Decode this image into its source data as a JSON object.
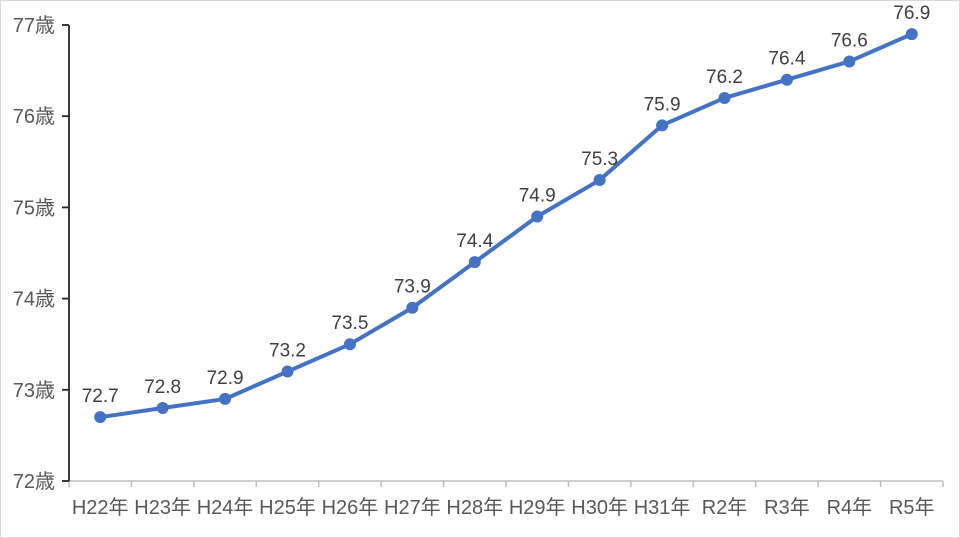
{
  "chart_data": {
    "type": "line",
    "title": "",
    "xlabel": "",
    "ylabel": "",
    "categories": [
      "H22年",
      "H23年",
      "H24年",
      "H25年",
      "H26年",
      "H27年",
      "H28年",
      "H29年",
      "H30年",
      "H31年",
      "R2年",
      "R3年",
      "R4年",
      "R5年"
    ],
    "values": [
      72.7,
      72.8,
      72.9,
      73.2,
      73.5,
      73.9,
      74.4,
      74.9,
      75.3,
      75.9,
      76.2,
      76.4,
      76.6,
      76.9
    ],
    "data_labels": [
      "72.7",
      "72.8",
      "72.9",
      "73.2",
      "73.5",
      "73.9",
      "74.4",
      "74.9",
      "75.3",
      "75.9",
      "76.2",
      "76.4",
      "76.6",
      "76.9"
    ],
    "y_tick_labels": [
      "72歳",
      "73歳",
      "74歳",
      "75歳",
      "76歳",
      "77歳"
    ],
    "y_tick_values": [
      72,
      73,
      74,
      75,
      76,
      77
    ],
    "ylim": [
      72,
      77
    ],
    "unit_suffix": "歳",
    "grid": false,
    "legend": false,
    "marker": "circle",
    "colors": {
      "line": "#4472C4",
      "marker": "#4472C4",
      "data_label": "#404040",
      "axis_text": "#595959",
      "y_axis": "#262626",
      "x_axis": "#BFBFBF",
      "frame_border": "#D9D9D9",
      "background": "#FFFFFF"
    }
  }
}
